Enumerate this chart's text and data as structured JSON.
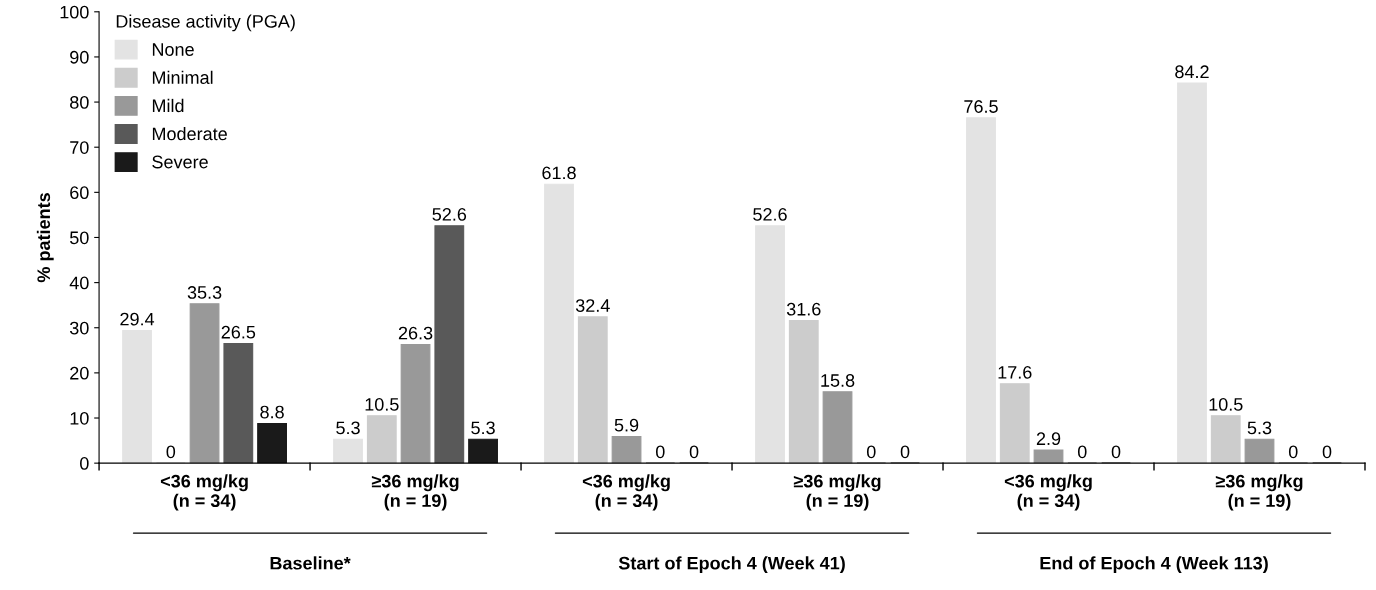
{
  "chart_data": {
    "type": "bar",
    "ylabel": "% patients",
    "legend_title": "Disease activity (PGA)",
    "categories": [
      "<36 mg/kg\n(n = 34)",
      "≥36 mg/kg\n(n = 19)",
      "<36 mg/kg\n(n = 34)",
      "≥36 mg/kg\n(n = 19)",
      "<36 mg/kg\n(n = 34)",
      "≥36 mg/kg\n(n = 19)"
    ],
    "series": [
      {
        "name": "None",
        "color": "#e3e3e3",
        "values": [
          29.4,
          5.3,
          61.8,
          52.6,
          76.5,
          84.2
        ]
      },
      {
        "name": "Minimal",
        "color": "#cccccc",
        "values": [
          0,
          10.5,
          32.4,
          31.6,
          17.6,
          10.5
        ]
      },
      {
        "name": "Mild",
        "color": "#999999",
        "values": [
          35.3,
          26.3,
          5.9,
          15.8,
          2.9,
          5.3
        ]
      },
      {
        "name": "Moderate",
        "color": "#595959",
        "values": [
          26.5,
          52.6,
          0,
          0,
          0,
          0
        ]
      },
      {
        "name": "Severe",
        "color": "#1a1a1a",
        "values": [
          8.8,
          5.3,
          0,
          0,
          0,
          0
        ]
      }
    ],
    "ylim": [
      0,
      100
    ],
    "yticks": [
      0,
      10,
      20,
      30,
      40,
      50,
      60,
      70,
      80,
      90,
      100
    ],
    "data_labels": true,
    "grid": false,
    "legend": "top left",
    "annotations": [
      "Baseline*",
      "Start of Epoch 4 (Week 41)",
      "End of Epoch 4 (Week 113)"
    ]
  }
}
